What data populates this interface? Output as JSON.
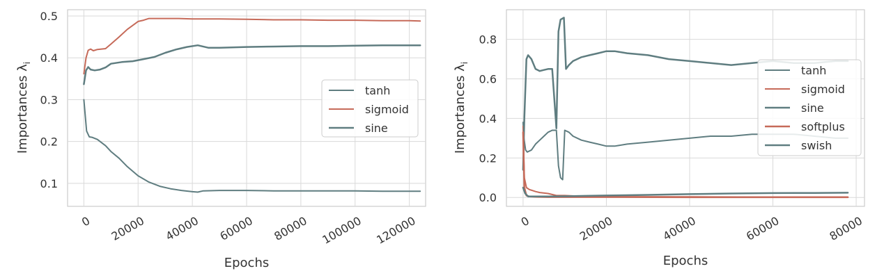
{
  "chart_data": [
    {
      "type": "line",
      "title": "",
      "xlabel": "Epochs",
      "ylabel": "Importances λ",
      "ylabel_subscript": "i",
      "xlim": [
        -6000,
        126000
      ],
      "ylim": [
        0.045,
        0.515
      ],
      "xticks": [
        0,
        20000,
        40000,
        60000,
        80000,
        100000,
        120000
      ],
      "yticks": [
        0.1,
        0.2,
        0.3,
        0.4,
        0.5
      ],
      "ytick_labels": [
        "0.1",
        "0.2",
        "0.3",
        "0.4",
        "0.5"
      ],
      "grid": true,
      "legend": "center-right",
      "series": [
        {
          "name": "tanh",
          "color": "#5f7d80",
          "width": 2,
          "x": [
            0,
            1000,
            2000,
            3000,
            5000,
            8000,
            10000,
            13000,
            16000,
            20000,
            24000,
            28000,
            32000,
            36000,
            40000,
            42000,
            44000,
            50000,
            60000,
            70000,
            80000,
            90000,
            100000,
            110000,
            120000,
            124000
          ],
          "y": [
            0.3,
            0.225,
            0.211,
            0.21,
            0.205,
            0.19,
            0.176,
            0.16,
            0.14,
            0.118,
            0.103,
            0.093,
            0.087,
            0.083,
            0.08,
            0.079,
            0.082,
            0.083,
            0.083,
            0.082,
            0.082,
            0.082,
            0.082,
            0.081,
            0.081,
            0.081
          ]
        },
        {
          "name": "sigmoid",
          "color": "#c66a59",
          "width": 2,
          "x": [
            0,
            800,
            1600,
            2500,
            3500,
            5000,
            8000,
            10000,
            13000,
            16000,
            20000,
            22000,
            24000,
            28000,
            35000,
            40000,
            50000,
            60000,
            70000,
            80000,
            90000,
            100000,
            110000,
            120000,
            124000
          ],
          "y": [
            0.362,
            0.4,
            0.418,
            0.421,
            0.417,
            0.42,
            0.422,
            0.433,
            0.45,
            0.468,
            0.487,
            0.49,
            0.494,
            0.494,
            0.494,
            0.493,
            0.493,
            0.492,
            0.491,
            0.491,
            0.49,
            0.49,
            0.489,
            0.489,
            0.488
          ]
        },
        {
          "name": "sine",
          "color": "#5f7d80",
          "width": 2.5,
          "x": [
            0,
            800,
            1600,
            2500,
            4000,
            6000,
            8000,
            10000,
            14000,
            18000,
            22000,
            26000,
            30000,
            34000,
            38000,
            42000,
            46000,
            50000,
            60000,
            70000,
            80000,
            90000,
            100000,
            110000,
            120000,
            124000
          ],
          "y": [
            0.337,
            0.37,
            0.378,
            0.372,
            0.37,
            0.372,
            0.377,
            0.386,
            0.39,
            0.392,
            0.397,
            0.402,
            0.412,
            0.42,
            0.426,
            0.43,
            0.424,
            0.424,
            0.426,
            0.427,
            0.428,
            0.428,
            0.429,
            0.43,
            0.43,
            0.43
          ]
        }
      ]
    },
    {
      "type": "line",
      "title": "",
      "xlabel": "Epochs",
      "ylabel": "Importances λ",
      "ylabel_subscript": "i",
      "xlim": [
        -4000,
        82000
      ],
      "ylim": [
        -0.045,
        0.95
      ],
      "xticks": [
        0,
        20000,
        40000,
        60000,
        80000
      ],
      "yticks": [
        0.0,
        0.2,
        0.4,
        0.6,
        0.8
      ],
      "ytick_labels": [
        "0.0",
        "0.2",
        "0.4",
        "0.6",
        "0.8"
      ],
      "grid": true,
      "legend": "right",
      "series": [
        {
          "name": "tanh",
          "color": "#5f7d80",
          "width": 2,
          "x": [
            0,
            200,
            600,
            1000,
            2000,
            3000,
            4000,
            5000,
            6000,
            7000,
            8000,
            8500,
            9000,
            9500,
            10000,
            11000,
            12000,
            14000,
            16000,
            18000,
            20000,
            22000,
            25000,
            30000,
            35000,
            40000,
            45000,
            50000,
            55000,
            60000,
            65000,
            70000,
            75000,
            78000
          ],
          "y": [
            0.38,
            0.3,
            0.24,
            0.23,
            0.24,
            0.27,
            0.29,
            0.31,
            0.33,
            0.34,
            0.34,
            0.16,
            0.1,
            0.09,
            0.34,
            0.33,
            0.31,
            0.29,
            0.28,
            0.27,
            0.26,
            0.26,
            0.27,
            0.28,
            0.29,
            0.3,
            0.31,
            0.31,
            0.32,
            0.32,
            0.32,
            0.31,
            0.3,
            0.3
          ]
        },
        {
          "name": "sigmoid",
          "color": "#c66a59",
          "width": 2,
          "x": [
            0,
            300,
            800,
            1500,
            3000,
            4000,
            6000,
            8000,
            10000,
            15000,
            20000,
            40000,
            60000,
            78000
          ],
          "y": [
            0.36,
            0.1,
            0.05,
            0.04,
            0.03,
            0.025,
            0.02,
            0.01,
            0.01,
            0.005,
            0.004,
            0.003,
            0.002,
            0.002
          ]
        },
        {
          "name": "sine",
          "color": "#5f7d80",
          "width": 2.5,
          "x": [
            0,
            300,
            800,
            1200,
            2000,
            3000,
            4000,
            5000,
            6000,
            7000,
            8000,
            8500,
            9000,
            9800,
            10300,
            11000,
            12000,
            14000,
            16000,
            18000,
            20000,
            22000,
            25000,
            30000,
            35000,
            40000,
            45000,
            50000,
            55000,
            60000,
            65000,
            70000,
            75000,
            78000
          ],
          "y": [
            0.14,
            0.4,
            0.7,
            0.72,
            0.7,
            0.65,
            0.64,
            0.645,
            0.65,
            0.65,
            0.35,
            0.84,
            0.9,
            0.91,
            0.65,
            0.67,
            0.69,
            0.71,
            0.72,
            0.73,
            0.74,
            0.74,
            0.73,
            0.72,
            0.7,
            0.69,
            0.68,
            0.67,
            0.68,
            0.69,
            0.68,
            0.68,
            0.69,
            0.69
          ]
        },
        {
          "name": "softplus",
          "color": "#c66a59",
          "width": 2.5,
          "x": [
            0,
            300,
            800,
            1500,
            3000,
            6000,
            10000,
            20000,
            40000,
            60000,
            78000
          ],
          "y": [
            0.33,
            0.05,
            0.01,
            0.005,
            0.003,
            0.002,
            0.002,
            0.002,
            0.001,
            0.001,
            0.001
          ]
        },
        {
          "name": "swish",
          "color": "#5f7d80",
          "width": 2.5,
          "x": [
            0,
            500,
            1200,
            3000,
            6000,
            10000,
            15000,
            20000,
            30000,
            40000,
            50000,
            60000,
            70000,
            78000
          ],
          "y": [
            0.05,
            0.02,
            0.005,
            0.005,
            0.005,
            0.006,
            0.008,
            0.01,
            0.013,
            0.017,
            0.02,
            0.022,
            0.023,
            0.024
          ]
        }
      ]
    }
  ]
}
